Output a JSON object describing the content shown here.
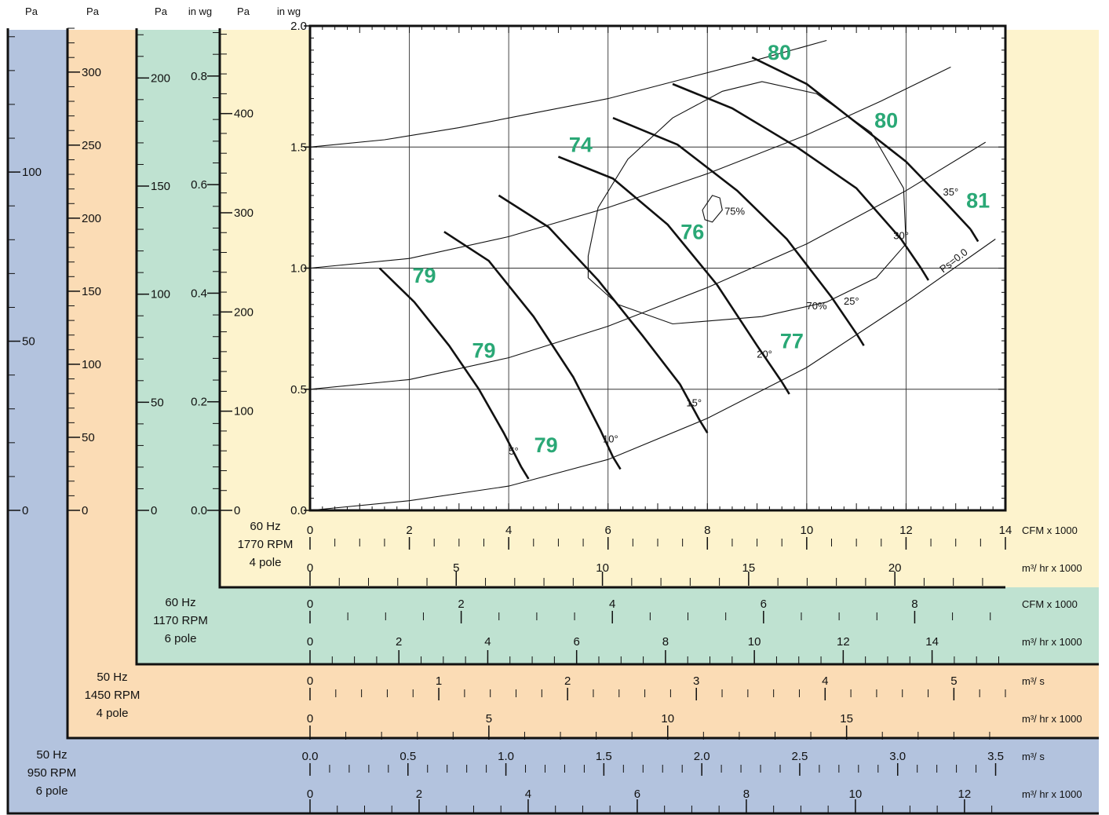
{
  "colors": {
    "blue": "#b3c3de",
    "orange": "#fbdcb5",
    "green": "#bfe2d1",
    "yellow": "#fdf3cd",
    "number_green": "#2aa876"
  },
  "chart_data": {
    "type": "line",
    "title": "",
    "grid": true,
    "x_axis": {
      "range": [
        0,
        14
      ],
      "ticks": [
        "0",
        "2",
        "4",
        "6",
        "8",
        "10",
        "12",
        "14"
      ],
      "unit": "CFM x 1000"
    },
    "y_axis": {
      "range": [
        0.0,
        2.0
      ],
      "ticks": [
        "0.0",
        "0.5",
        "1.0",
        "1.5",
        "2.0"
      ]
    },
    "y_header": [
      "Pa",
      "Pa",
      "Pa",
      "in wg",
      "Pa",
      "in wg"
    ],
    "y_scales": [
      {
        "name": "50 Hz 950 RPM 6 pole",
        "unit": "Pa",
        "ticks": [
          "0",
          "50",
          "100"
        ]
      },
      {
        "name": "50 Hz 1450 RPM 4 pole",
        "unit": "Pa",
        "ticks": [
          "0",
          "50",
          "100",
          "150",
          "200",
          "250",
          "300"
        ]
      },
      {
        "name": "60 Hz 1170 RPM 6 pole",
        "unit": "Pa",
        "ticks": [
          "0",
          "50",
          "100",
          "150",
          "200"
        ]
      },
      {
        "name": "60 Hz 1170 RPM 6 pole",
        "unit": "in wg",
        "ticks": [
          "0.0",
          "0.2",
          "0.4",
          "0.6",
          "0.8"
        ]
      },
      {
        "name": "60 Hz 1770 RPM 4 pole",
        "unit": "Pa",
        "ticks": [
          "0",
          "100",
          "200",
          "300",
          "400"
        ]
      }
    ],
    "x_scales": [
      {
        "speed": [
          "60 Hz",
          "1770 RPM",
          "4 pole"
        ],
        "units": [
          "CFM x 1000",
          "m³/ hr x 1000"
        ],
        "rows": [
          [
            "0",
            "2",
            "4",
            "6",
            "8",
            "10",
            "12",
            "14"
          ],
          [
            "0",
            "5",
            "10",
            "15",
            "20"
          ]
        ]
      },
      {
        "speed": [
          "60 Hz",
          "1170 RPM",
          "6 pole"
        ],
        "units": [
          "CFM x 1000",
          "m³/ hr x 1000"
        ],
        "rows": [
          [
            "0",
            "2",
            "4",
            "6",
            "8"
          ],
          [
            "0",
            "2",
            "4",
            "6",
            "8",
            "10",
            "12",
            "14"
          ]
        ]
      },
      {
        "speed": [
          "50 Hz",
          "1450 RPM",
          "4 pole"
        ],
        "units": [
          "m³/ s",
          "m³/ hr x 1000"
        ],
        "rows": [
          [
            "0",
            "1",
            "2",
            "3",
            "4",
            "5"
          ],
          [
            "0",
            "5",
            "10",
            "15"
          ]
        ]
      },
      {
        "speed": [
          "50 Hz",
          "950 RPM",
          "6 pole"
        ],
        "units": [
          "m³/ s",
          "m³/ hr x 1000"
        ],
        "rows": [
          [
            "0.0",
            "0.5",
            "1.0",
            "1.5",
            "2.0",
            "2.5",
            "3.0",
            "3.5"
          ],
          [
            "0",
            "2",
            "4",
            "6",
            "8",
            "10",
            "12"
          ]
        ]
      }
    ],
    "system_curves": [
      {
        "label": "",
        "points": [
          [
            0,
            1.5
          ],
          [
            1.5,
            1.53
          ],
          [
            3,
            1.58
          ],
          [
            4.5,
            1.64
          ],
          [
            6,
            1.7
          ],
          [
            7.5,
            1.78
          ],
          [
            9,
            1.86
          ],
          [
            10.4,
            1.94
          ]
        ]
      },
      {
        "label": "",
        "points": [
          [
            0,
            1.0
          ],
          [
            2,
            1.04
          ],
          [
            4,
            1.13
          ],
          [
            6,
            1.25
          ],
          [
            8,
            1.39
          ],
          [
            10,
            1.55
          ],
          [
            11.5,
            1.69
          ],
          [
            12.9,
            1.83
          ]
        ]
      },
      {
        "label": "",
        "points": [
          [
            0,
            0.5
          ],
          [
            2,
            0.54
          ],
          [
            4,
            0.63
          ],
          [
            6,
            0.76
          ],
          [
            8,
            0.92
          ],
          [
            10,
            1.1
          ],
          [
            12,
            1.32
          ],
          [
            13.6,
            1.52
          ]
        ]
      },
      {
        "label": "Ps=0.0",
        "points": [
          [
            0,
            0.0
          ],
          [
            2,
            0.04
          ],
          [
            4,
            0.1
          ],
          [
            6,
            0.21
          ],
          [
            8,
            0.38
          ],
          [
            10,
            0.59
          ],
          [
            12,
            0.86
          ],
          [
            13.8,
            1.12
          ]
        ]
      }
    ],
    "blade_angle_curves": [
      {
        "angle": "5°",
        "points": [
          [
            1.4,
            1.0
          ],
          [
            2.1,
            0.86
          ],
          [
            2.8,
            0.68
          ],
          [
            3.4,
            0.5
          ],
          [
            3.9,
            0.32
          ],
          [
            4.25,
            0.18
          ]
        ]
      },
      {
        "angle": "10°",
        "points": [
          [
            2.7,
            1.15
          ],
          [
            3.6,
            1.03
          ],
          [
            4.5,
            0.8
          ],
          [
            5.3,
            0.55
          ],
          [
            5.85,
            0.33
          ],
          [
            6.1,
            0.22
          ]
        ]
      },
      {
        "angle": "15°",
        "points": [
          [
            3.8,
            1.3
          ],
          [
            4.8,
            1.17
          ],
          [
            5.8,
            0.95
          ],
          [
            6.7,
            0.72
          ],
          [
            7.45,
            0.52
          ],
          [
            7.85,
            0.37
          ]
        ]
      },
      {
        "angle": "20°",
        "points": [
          [
            5.0,
            1.46
          ],
          [
            6.1,
            1.37
          ],
          [
            7.2,
            1.18
          ],
          [
            8.2,
            0.93
          ],
          [
            9.0,
            0.68
          ],
          [
            9.5,
            0.53
          ]
        ]
      },
      {
        "angle": "25°",
        "points": [
          [
            6.1,
            1.62
          ],
          [
            7.4,
            1.51
          ],
          [
            8.6,
            1.32
          ],
          [
            9.6,
            1.12
          ],
          [
            10.5,
            0.88
          ],
          [
            11.0,
            0.73
          ]
        ]
      },
      {
        "angle": "30°",
        "points": [
          [
            7.3,
            1.76
          ],
          [
            8.5,
            1.66
          ],
          [
            9.8,
            1.5
          ],
          [
            11.0,
            1.33
          ],
          [
            11.9,
            1.12
          ],
          [
            12.3,
            1.0
          ]
        ]
      },
      {
        "angle": "35°",
        "points": [
          [
            8.9,
            1.87
          ],
          [
            10.0,
            1.76
          ],
          [
            11.0,
            1.6
          ],
          [
            12.0,
            1.44
          ],
          [
            12.8,
            1.27
          ],
          [
            13.3,
            1.16
          ]
        ]
      }
    ],
    "efficiency_contours": [
      {
        "label": "70%",
        "points": [
          [
            5.6,
            1.05
          ],
          [
            5.8,
            1.25
          ],
          [
            6.4,
            1.45
          ],
          [
            7.3,
            1.62
          ],
          [
            8.3,
            1.73
          ],
          [
            9.1,
            1.77
          ],
          [
            10.2,
            1.72
          ],
          [
            11.3,
            1.56
          ],
          [
            11.95,
            1.33
          ],
          [
            12.0,
            1.1
          ],
          [
            11.4,
            0.96
          ],
          [
            10.4,
            0.86
          ],
          [
            9.1,
            0.8
          ],
          [
            7.3,
            0.77
          ],
          [
            6.2,
            0.85
          ],
          [
            5.6,
            0.96
          ]
        ]
      },
      {
        "label": "75%",
        "points": [
          [
            7.9,
            1.24
          ],
          [
            8.1,
            1.3
          ],
          [
            8.25,
            1.29
          ],
          [
            8.3,
            1.24
          ],
          [
            8.1,
            1.19
          ],
          [
            7.95,
            1.2
          ]
        ]
      }
    ],
    "sound_levels": [
      {
        "value": "79",
        "x": 2.3,
        "y": 0.94
      },
      {
        "value": "79",
        "x": 3.5,
        "y": 0.63
      },
      {
        "value": "79",
        "x": 4.75,
        "y": 0.24
      },
      {
        "value": "74",
        "x": 5.45,
        "y": 1.48
      },
      {
        "value": "76",
        "x": 7.7,
        "y": 1.12
      },
      {
        "value": "77",
        "x": 9.7,
        "y": 0.67
      },
      {
        "value": "80",
        "x": 9.45,
        "y": 1.86
      },
      {
        "value": "80",
        "x": 11.6,
        "y": 1.58
      },
      {
        "value": "81",
        "x": 13.45,
        "y": 1.25
      }
    ]
  }
}
